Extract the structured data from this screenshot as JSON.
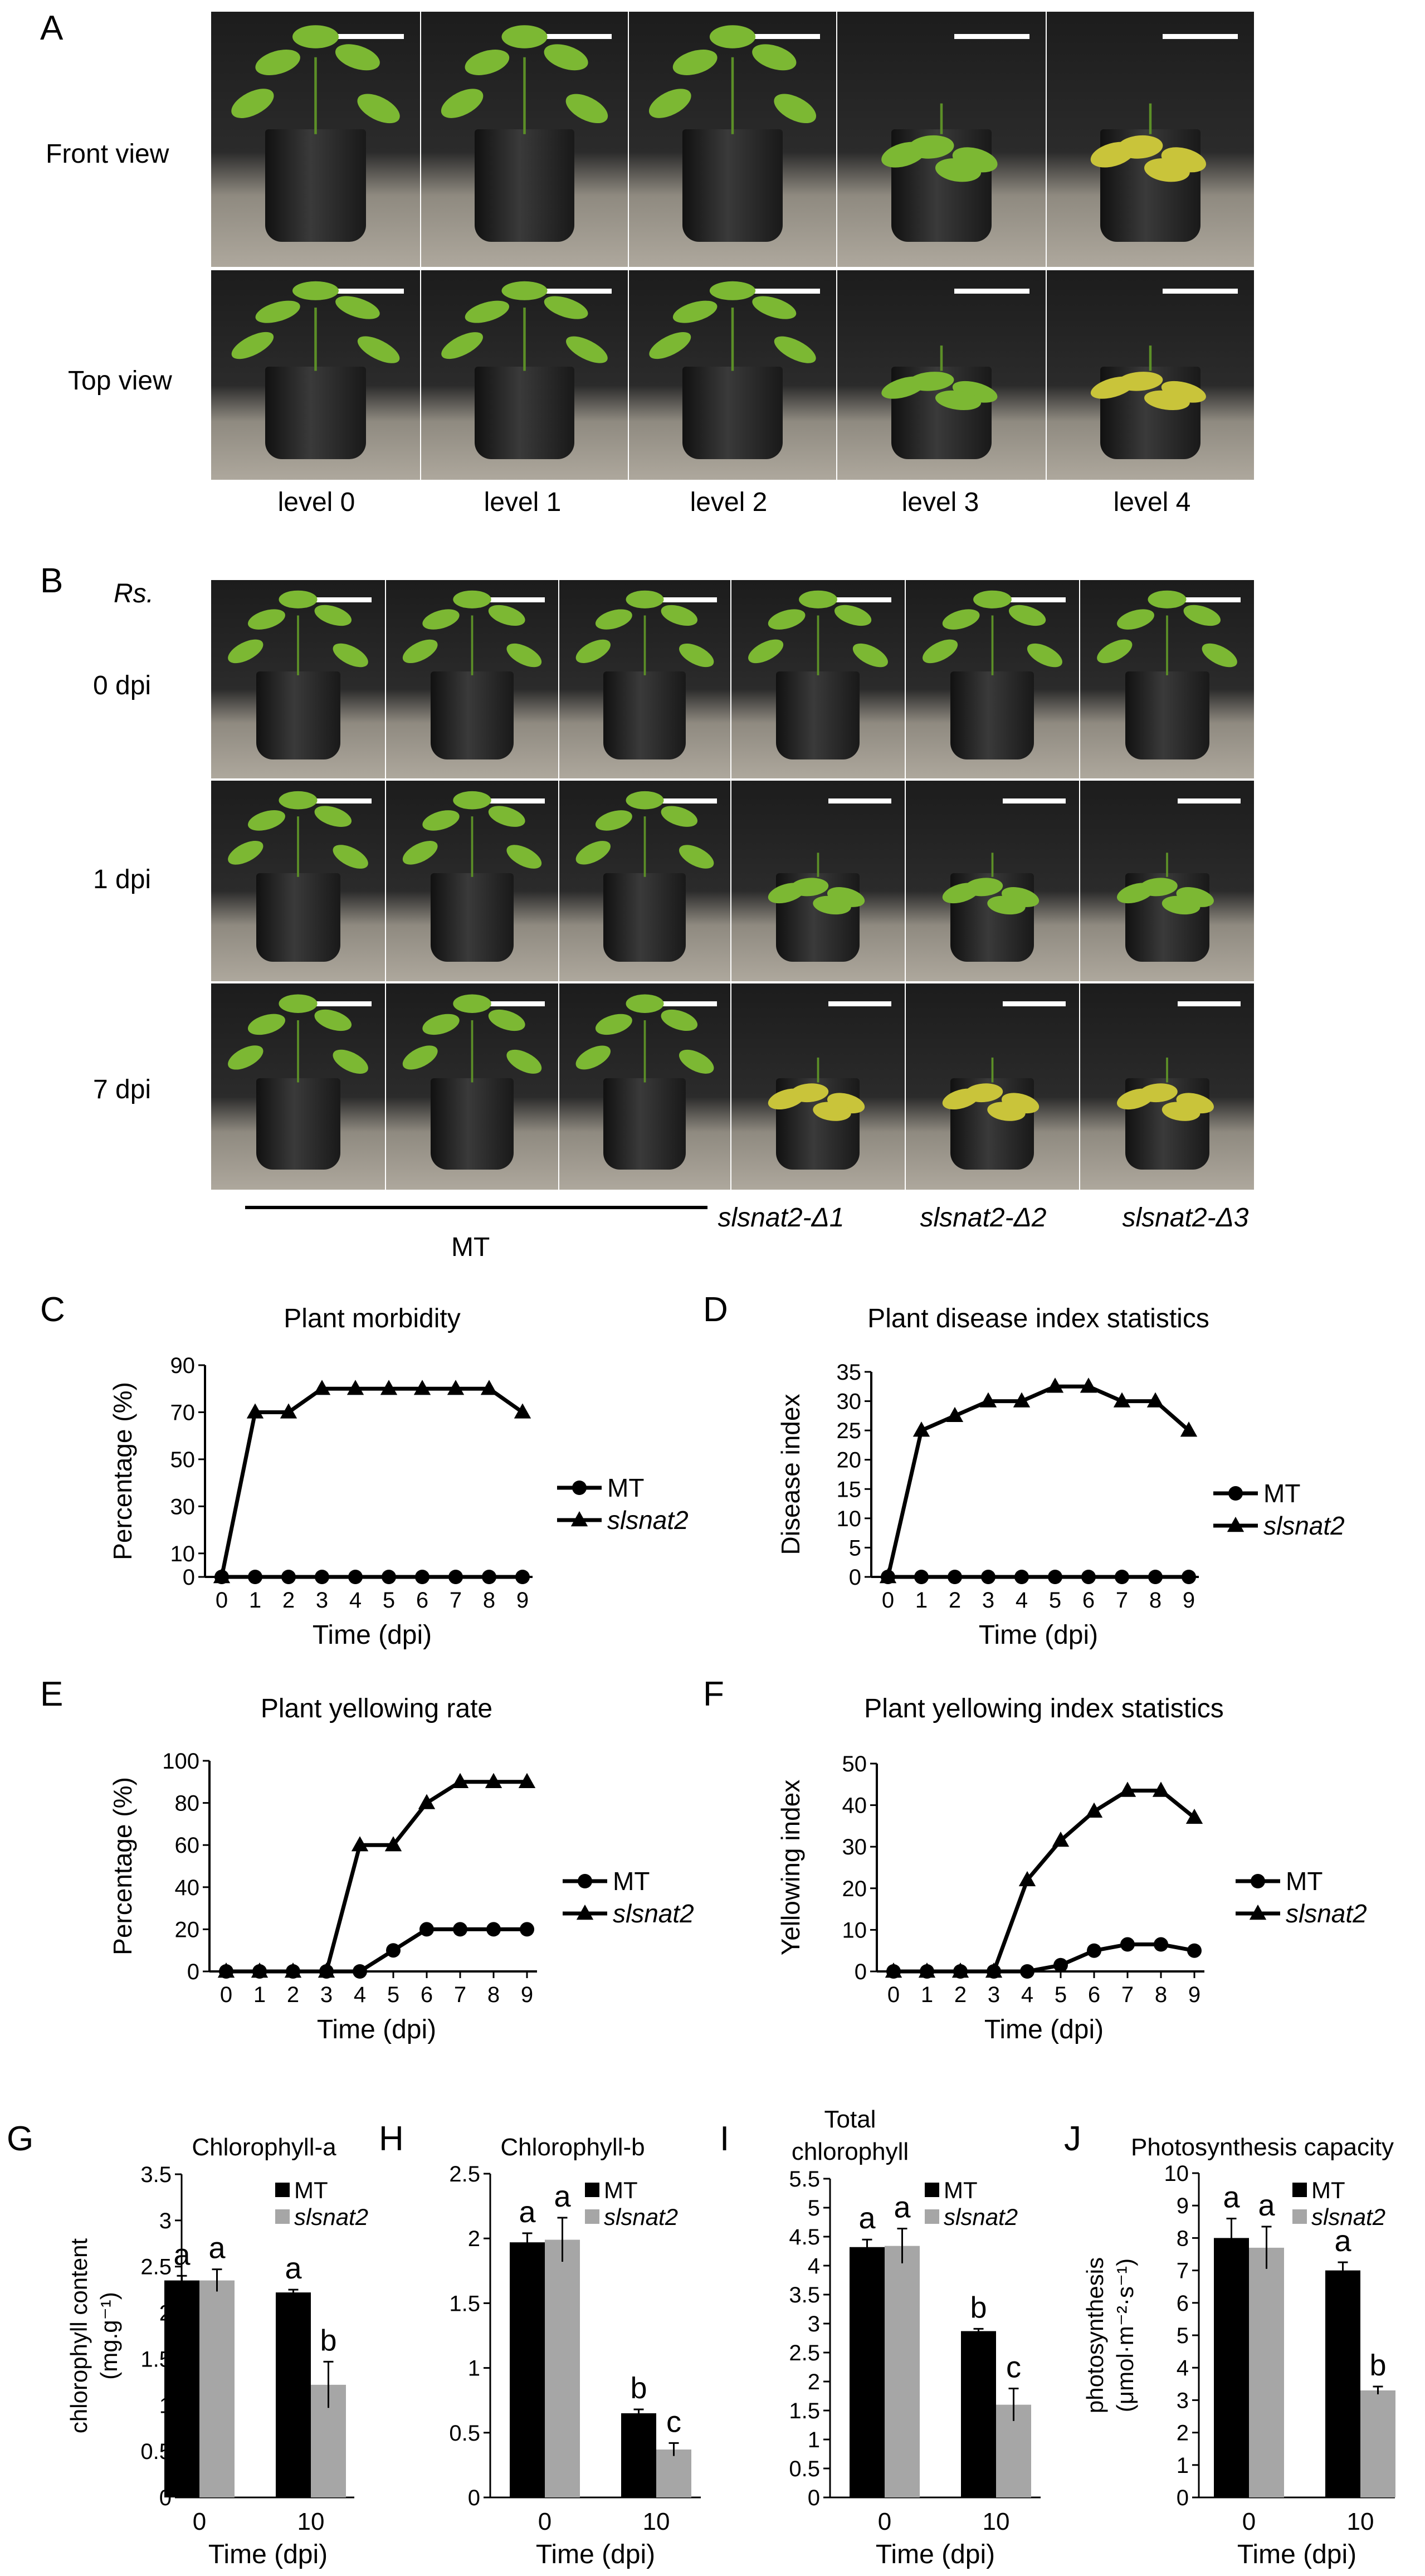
{
  "panel_letters": {
    "A": "A",
    "B": "B",
    "C": "C",
    "D": "D",
    "E": "E",
    "F": "F",
    "G": "G",
    "H": "H",
    "I": "I",
    "J": "J"
  },
  "panel_A": {
    "row_labels": [
      "Front view",
      "Top view"
    ],
    "column_labels": [
      "level 0",
      "level 1",
      "level 2",
      "level 3",
      "level 4"
    ]
  },
  "panel_B": {
    "header": "Rs.",
    "row_labels": [
      "0 dpi",
      "1 dpi",
      "7 dpi"
    ],
    "group_label": "MT",
    "mutant_labels": [
      "slsnat2-Δ1",
      "slsnat2-Δ2",
      "slsnat2-Δ3"
    ]
  },
  "colors": {
    "mt_bar": "#000000",
    "mutant_bar": "#a6a6a6",
    "photo_bg": "#222222",
    "leaf": "#7cb833",
    "leaf_yellow": "#c9c43a"
  },
  "chart_data": [
    {
      "id": "C",
      "type": "line",
      "title": "Plant morbidity",
      "xlabel": "Time (dpi)",
      "ylabel": "Percentage (%)",
      "x": [
        0,
        1,
        2,
        3,
        4,
        5,
        6,
        7,
        8,
        9
      ],
      "yticks": [
        0,
        10,
        30,
        50,
        70,
        90
      ],
      "ylim": [
        0,
        90
      ],
      "series": [
        {
          "name": "MT",
          "marker": "circle",
          "values": [
            0,
            0,
            0,
            0,
            0,
            0,
            0,
            0,
            0,
            0
          ]
        },
        {
          "name": "slsnat2",
          "marker": "triangle",
          "values": [
            0,
            70,
            70,
            80,
            80,
            80,
            80,
            80,
            80,
            70
          ]
        }
      ],
      "legend": "right"
    },
    {
      "id": "D",
      "type": "line",
      "title": "Plant disease index statistics",
      "xlabel": "Time (dpi)",
      "ylabel": "Disease index",
      "x": [
        0,
        1,
        2,
        3,
        4,
        5,
        6,
        7,
        8,
        9
      ],
      "yticks": [
        0,
        5,
        10,
        15,
        20,
        25,
        30,
        35
      ],
      "ylim": [
        0,
        35
      ],
      "series": [
        {
          "name": "MT",
          "marker": "circle",
          "values": [
            0,
            0,
            0,
            0,
            0,
            0,
            0,
            0,
            0,
            0
          ]
        },
        {
          "name": "slsnat2",
          "marker": "triangle",
          "values": [
            0,
            25,
            27.5,
            30,
            30,
            32.5,
            32.5,
            30,
            30,
            25
          ]
        }
      ],
      "legend": "right"
    },
    {
      "id": "E",
      "type": "line",
      "title": "Plant yellowing rate",
      "xlabel": "Time (dpi)",
      "ylabel": "Percentage (%)",
      "x": [
        0,
        1,
        2,
        3,
        4,
        5,
        6,
        7,
        8,
        9
      ],
      "yticks": [
        0,
        20,
        40,
        60,
        80,
        100
      ],
      "ylim": [
        0,
        100
      ],
      "series": [
        {
          "name": "MT",
          "marker": "circle",
          "values": [
            0,
            0,
            0,
            0,
            0,
            10,
            20,
            20,
            20,
            20
          ]
        },
        {
          "name": "slsnat2",
          "marker": "triangle",
          "values": [
            0,
            0,
            0,
            0,
            60,
            60,
            80,
            90,
            90,
            90
          ]
        }
      ],
      "legend": "right"
    },
    {
      "id": "F",
      "type": "line",
      "title": "Plant yellowing index statistics",
      "xlabel": "Time (dpi)",
      "ylabel": "Yellowing index",
      "x": [
        0,
        1,
        2,
        3,
        4,
        5,
        6,
        7,
        8,
        9
      ],
      "yticks": [
        0,
        10,
        20,
        30,
        40,
        50
      ],
      "ylim": [
        0,
        50
      ],
      "series": [
        {
          "name": "MT",
          "marker": "circle",
          "values": [
            0,
            0,
            0,
            0,
            0,
            1.5,
            5,
            6.5,
            6.5,
            5
          ]
        },
        {
          "name": "slsnat2",
          "marker": "triangle",
          "values": [
            0,
            0,
            0,
            0,
            22,
            31.5,
            38.5,
            43.5,
            43.5,
            37
          ]
        }
      ],
      "legend": "right"
    },
    {
      "id": "G",
      "type": "bar",
      "title": "Chlorophyll-a",
      "xlabel": "Time (dpi)",
      "ylabel_lines": [
        "chlorophyll content",
        "(mg.g⁻¹)"
      ],
      "categories": [
        "0",
        "10"
      ],
      "yticks": [
        0,
        0.5,
        1,
        1.5,
        2,
        2.5,
        3,
        3.5
      ],
      "ylim": [
        0,
        3.5
      ],
      "series": [
        {
          "name": "MT",
          "values": [
            2.35,
            2.22
          ],
          "errors": [
            0.05,
            0.03
          ],
          "letters": [
            "a",
            "a"
          ]
        },
        {
          "name": "slsnat2",
          "values": [
            2.35,
            1.22
          ],
          "errors": [
            0.12,
            0.25
          ],
          "letters": [
            "a",
            "b"
          ]
        }
      ]
    },
    {
      "id": "H",
      "type": "bar",
      "title": "Chlorophyll-b",
      "xlabel": "Time (dpi)",
      "categories": [
        "0",
        "10"
      ],
      "yticks": [
        0,
        0.5,
        1,
        1.5,
        2,
        2.5
      ],
      "ylim": [
        0,
        2.5
      ],
      "series": [
        {
          "name": "MT",
          "values": [
            1.97,
            0.65
          ],
          "errors": [
            0.07,
            0.03
          ],
          "letters": [
            "a",
            "b"
          ]
        },
        {
          "name": "slsnat2",
          "values": [
            1.99,
            0.37
          ],
          "errors": [
            0.17,
            0.05
          ],
          "letters": [
            "a",
            "c"
          ]
        }
      ]
    },
    {
      "id": "I",
      "type": "bar",
      "title_lines": [
        "Total",
        "chlorophyll"
      ],
      "xlabel": "Time (dpi)",
      "categories": [
        "0",
        "10"
      ],
      "yticks": [
        0,
        0.5,
        1,
        1.5,
        2,
        2.5,
        3,
        3.5,
        4,
        4.5,
        5,
        5.5
      ],
      "ylim": [
        0,
        5.5
      ],
      "series": [
        {
          "name": "MT",
          "values": [
            4.32,
            2.87
          ],
          "errors": [
            0.13,
            0.04
          ],
          "letters": [
            "a",
            "b"
          ]
        },
        {
          "name": "slsnat2",
          "values": [
            4.34,
            1.6
          ],
          "errors": [
            0.3,
            0.28
          ],
          "letters": [
            "a",
            "c"
          ]
        }
      ]
    },
    {
      "id": "J",
      "type": "bar",
      "title": "Photosynthesis capacity",
      "xlabel": "Time (dpi)",
      "ylabel_lines": [
        "photosynthesis",
        "(μmol·m⁻²·s⁻¹)"
      ],
      "categories": [
        "0",
        "10"
      ],
      "yticks": [
        0,
        1,
        2,
        3,
        4,
        5,
        6,
        7,
        8,
        9,
        10
      ],
      "ylim": [
        0,
        10
      ],
      "series": [
        {
          "name": "MT",
          "values": [
            8.0,
            7.0
          ],
          "errors": [
            0.6,
            0.25
          ],
          "letters": [
            "a",
            "a"
          ]
        },
        {
          "name": "slsnat2",
          "values": [
            7.7,
            3.3
          ],
          "errors": [
            0.65,
            0.12
          ],
          "letters": [
            "a",
            "b"
          ]
        }
      ]
    }
  ]
}
